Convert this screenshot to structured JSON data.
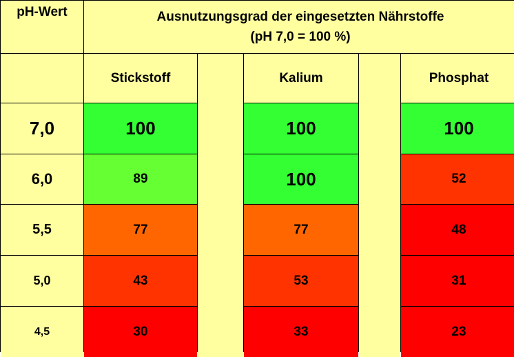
{
  "header": {
    "ph_label": "pH-Wert",
    "title_line1": "Ausnutzungsgrad der eingesetzten Nährstoffe",
    "title_line2": "(pH 7,0 = 100 %)"
  },
  "columns": [
    "Stickstoff",
    "Kalium",
    "Phosphat"
  ],
  "colors": {
    "background": "#ffffa0",
    "green": "#33ff33",
    "light_green": "#66ff33",
    "orange": "#ff6600",
    "orange_red": "#ff3300",
    "red": "#ff0000"
  },
  "chart_data": {
    "type": "table",
    "title": "Ausnutzungsgrad der eingesetzten Nährstoffe",
    "subtitle": "(pH 7,0 = 100 %)",
    "row_header": "pH-Wert",
    "columns": [
      "Stickstoff",
      "Kalium",
      "Phosphat"
    ],
    "rows": [
      {
        "ph": "7,0",
        "values": [
          "100",
          "100",
          "100"
        ],
        "colors": [
          "#33ff33",
          "#33ff33",
          "#33ff33"
        ]
      },
      {
        "ph": "6,0",
        "values": [
          "89",
          "100",
          "52"
        ],
        "colors": [
          "#66ff33",
          "#33ff33",
          "#ff3300"
        ]
      },
      {
        "ph": "5,5",
        "values": [
          "77",
          "77",
          "48"
        ],
        "colors": [
          "#ff6600",
          "#ff6600",
          "#ff0000"
        ]
      },
      {
        "ph": "5,0",
        "values": [
          "43",
          "53",
          "31"
        ],
        "colors": [
          "#ff3300",
          "#ff3300",
          "#ff0000"
        ]
      },
      {
        "ph": "4,5",
        "values": [
          "30",
          "33",
          "23"
        ],
        "colors": [
          "#ff0000",
          "#ff0000",
          "#ff0000"
        ]
      }
    ]
  }
}
